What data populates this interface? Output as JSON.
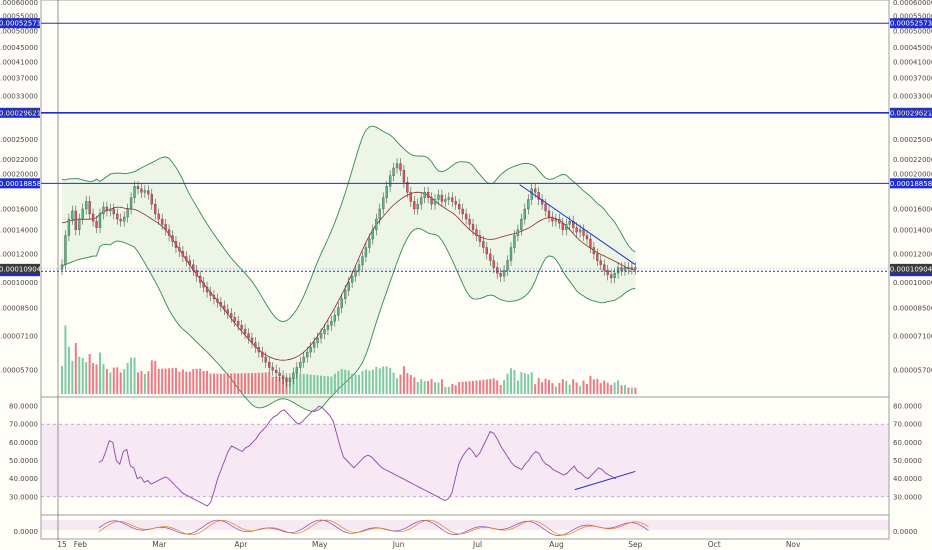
{
  "chart_data": [
    {
      "type": "candlestick",
      "panel": "price",
      "y_scale": "log",
      "ylim": [
        4.8e-05,
        0.00061
      ],
      "price_tick_labels": [
        "0.00060000",
        "0.00055000",
        "0.00050000",
        "0.00045000",
        "0.00041000",
        "0.00037000",
        "0.00033000",
        "0.00030000",
        "0.00025000",
        "0.00022000",
        "0.00020000",
        "0.00016000",
        "0.00014000",
        "0.00012000",
        "0.00010000",
        "0.00008500",
        "0.00007100",
        "0.00005700"
      ],
      "price_tick_values": [
        0.0006,
        0.00055,
        0.0005,
        0.00045,
        0.00041,
        0.00037,
        0.00033,
        0.0003,
        0.00025,
        0.00022,
        0.0002,
        0.00016,
        0.00014,
        0.00012,
        0.0001,
        8.5e-05,
        7.1e-05,
        5.7e-05
      ],
      "horizontal_levels": [
        {
          "label": "0.00052573",
          "value": 0.00052573
        },
        {
          "label": "0.00029621",
          "value": 0.00029621
        },
        {
          "label": "0.00018858",
          "value": 0.00018858
        },
        {
          "label": "0.00010743",
          "value": 0.00010743
        }
      ],
      "last_price": {
        "label": "0.00010904",
        "value": 0.00010904
      },
      "bollinger_bands": true,
      "volume_bars": true,
      "trendline": {
        "from": {
          "x": 174,
          "y": 0.000187
        },
        "to": {
          "x": 218,
          "y": 0.000112
        }
      },
      "series_close": [
        0.000112,
        0.000135,
        0.00015,
        0.000158,
        0.00014,
        0.00015,
        0.00016,
        0.000168,
        0.000155,
        0.000148,
        0.000142,
        0.000155,
        0.000162,
        0.000158,
        0.00016,
        0.000155,
        0.00015,
        0.000148,
        0.000152,
        0.00016,
        0.000172,
        0.000185,
        0.000182,
        0.000178,
        0.00018,
        0.000176,
        0.000165,
        0.000155,
        0.00015,
        0.000145,
        0.00014,
        0.000135,
        0.00013,
        0.000125,
        0.000122,
        0.000118,
        0.000115,
        0.000112,
        0.000108,
        0.000104,
        0.0001,
        9.7e-05,
        9.4e-05,
        9.2e-05,
        9e-05,
        8.8e-05,
        8.6e-05,
        8.4e-05,
        8.2e-05,
        8e-05,
        7.8e-05,
        7.6e-05,
        7.4e-05,
        7.2e-05,
        7e-05,
        6.8e-05,
        6.6e-05,
        6.4e-05,
        6.2e-05,
        6e-05,
        5.8e-05,
        5.7e-05,
        5.6e-05,
        5.5e-05,
        5.4e-05,
        5.3e-05,
        5.4e-05,
        5.6e-05,
        5.8e-05,
        6e-05,
        6.2e-05,
        6.4e-05,
        6.6e-05,
        6.8e-05,
        7e-05,
        7.2e-05,
        7.4e-05,
        7.6e-05,
        7.8e-05,
        8.1e-05,
        8.5e-05,
        9e-05,
        9.5e-05,
        0.0001,
        0.000104,
        0.000108,
        0.000112,
        0.000118,
        0.000125,
        0.000132,
        0.00014,
        0.00015,
        0.00016,
        0.000172,
        0.000185,
        0.000198,
        0.000208,
        0.000214,
        0.000205,
        0.00019,
        0.000178,
        0.000168,
        0.00016,
        0.000165,
        0.000172,
        0.000178,
        0.000172,
        0.000165,
        0.00017,
        0.000175,
        0.000168,
        0.00017,
        0.000172,
        0.000168,
        0.000165,
        0.00016,
        0.000155,
        0.00015,
        0.000145,
        0.00014,
        0.000135,
        0.00013,
        0.000125,
        0.00012,
        0.000115,
        0.00011,
        0.000106,
        0.000104,
        0.000108,
        0.000115,
        0.000125,
        0.000135,
        0.00014,
        0.00015,
        0.00016,
        0.00017,
        0.000182,
        0.000178,
        0.00017,
        0.000165,
        0.000158,
        0.000152,
        0.000148,
        0.00015,
        0.000146,
        0.00014,
        0.000145,
        0.000148,
        0.000142,
        0.000138,
        0.00014,
        0.000135,
        0.000132,
        0.000125,
        0.00012,
        0.000115,
        0.000112,
        0.000108,
        0.000105,
        0.000103,
        0.000106,
        0.00011,
        0.000108,
        0.00011,
        0.000109,
        0.00011,
        0.000109
      ],
      "series_x_start": 0,
      "series_x_step": 1
    },
    {
      "type": "line",
      "panel": "rsi",
      "ylim": [
        20,
        85
      ],
      "y_tick_labels": [
        "80.0000",
        "70.0000",
        "60.0000",
        "50.0000",
        "40.0000",
        "30.0000"
      ],
      "y_tick_values": [
        80,
        70,
        60,
        50,
        40,
        30
      ],
      "band": [
        30,
        70
      ],
      "values": [
        49,
        50,
        55,
        61,
        60,
        50,
        48,
        55,
        56,
        47,
        46,
        40,
        41,
        38,
        39,
        37,
        38,
        39,
        40,
        41,
        40,
        38,
        36,
        34,
        32,
        31,
        30,
        29,
        28,
        27,
        26,
        25,
        27,
        33,
        40,
        45,
        50,
        55,
        58,
        57,
        56,
        55,
        57,
        58,
        60,
        62,
        65,
        67,
        69,
        72,
        74,
        75,
        77,
        78,
        76,
        74,
        72,
        70,
        71,
        73,
        75,
        77,
        78,
        80,
        79,
        77,
        75,
        72,
        65,
        58,
        52,
        50,
        48,
        46,
        48,
        50,
        52,
        53,
        52,
        50,
        48,
        46,
        45,
        44,
        43,
        42,
        41,
        40,
        39,
        38,
        37,
        36,
        35,
        34,
        33,
        32,
        31,
        30,
        29,
        28,
        29,
        32,
        40,
        48,
        52,
        55,
        57,
        55,
        52,
        54,
        58,
        62,
        66,
        65,
        62,
        58,
        55,
        52,
        49,
        47,
        46,
        45,
        48,
        50,
        53,
        55,
        54,
        50,
        48,
        47,
        45,
        44,
        43,
        42,
        43,
        45,
        47,
        44,
        43,
        41,
        40,
        42,
        44,
        46,
        45,
        43,
        42,
        41,
        40
      ],
      "trendline": {
        "from": {
          "x": 195,
          "y": 34
        },
        "to": {
          "x": 218,
          "y": 44
        }
      }
    },
    {
      "type": "line",
      "panel": "stoch_rsi",
      "ylim": [
        0,
        100
      ],
      "y_tick_labels": [
        "0.0000"
      ],
      "y_tick_values": [
        0
      ]
    }
  ],
  "x_axis": {
    "labels": [
      "15",
      "Feb",
      "Mar",
      "Apr",
      "May",
      "Jun",
      "Jul",
      "Aug",
      "Sep",
      "Oct",
      "Nov"
    ],
    "positions": [
      0,
      7,
      37,
      68,
      98,
      128,
      158,
      188,
      218,
      248,
      278
    ]
  }
}
